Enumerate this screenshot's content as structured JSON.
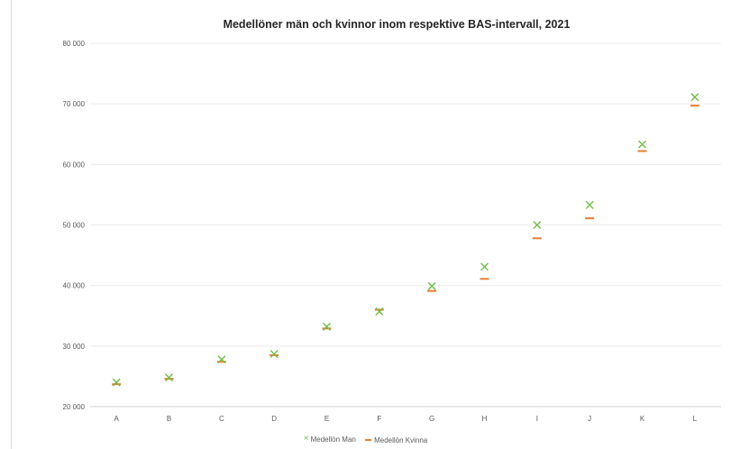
{
  "chart_data": {
    "type": "scatter",
    "title": "Medellöner män och kvinnor inom respektive BAS-intervall, 2021",
    "xlabel": "",
    "ylabel": "",
    "categories": [
      "A",
      "B",
      "C",
      "D",
      "E",
      "F",
      "G",
      "H",
      "I",
      "J",
      "K",
      "L"
    ],
    "ylim": [
      20000,
      80000
    ],
    "yticks": [
      20000,
      30000,
      40000,
      50000,
      60000,
      70000,
      80000
    ],
    "ytick_labels": [
      "20 000",
      "30 000",
      "40 000",
      "50 000",
      "60 000",
      "70 000",
      "80 000"
    ],
    "grid": true,
    "legend_position": "bottom",
    "series": [
      {
        "name": "Medellön  Man",
        "marker": "x",
        "color": "#6fbe44",
        "values": [
          24000,
          24800,
          27800,
          28700,
          33200,
          35700,
          39900,
          43100,
          50000,
          53300,
          63300,
          71100
        ]
      },
      {
        "name": "Medellön  Kvinna",
        "marker": "dash",
        "color": "#e97d31",
        "values": [
          23700,
          24600,
          27400,
          28500,
          32900,
          36000,
          39100,
          41100,
          47800,
          51100,
          62200,
          69700
        ]
      }
    ]
  }
}
